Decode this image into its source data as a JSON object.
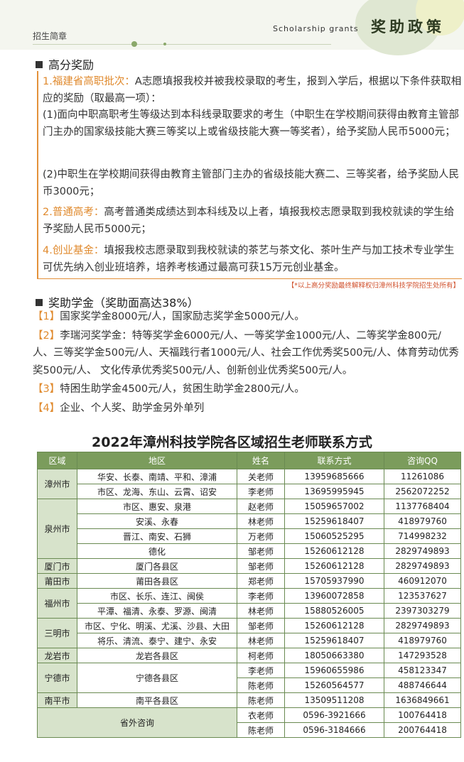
{
  "header": {
    "left": "招生简章",
    "right_en": "Scholarship grants",
    "right_cn": "奖助政策"
  },
  "section1": {
    "title": "高分奖励",
    "item1": {
      "label": "1.福建省高职批次：",
      "text": "A志愿填报我校并被我校录取的考生，报到入学后，根据以下条件获取相应的奖励（取最高一项）：",
      "subs": [
        "(1)面向中职高职考生等级达到本科线录取要求的考生（中职生在学校期间获得由教育主管部门主办的国家级技能大赛三等奖以上或省级技能大赛一等奖者），给予奖励人民币5000元；",
        "(2)中职生在学校期间获得由教育主管部门主办的省级技能大赛二、三等奖者，给予奖励人民币3000元；"
      ]
    },
    "item2": {
      "label": "2.普通高考：",
      "text": "高考普通类成绩达到本科线及以上者，填报我校志愿录取到我校就读的学生给予奖励人民币5000元；"
    },
    "item3": {
      "label": "4.创业基金：",
      "text": "填报我校志愿录取到我校就读的茶艺与茶文化、茶叶生产与加工技术专业学生可优先纳入创业班培养，培养考核通过最高可获15万元创业基金。"
    },
    "note": "【*以上高分奖励最终解释权归漳州科技学院招生处所有】"
  },
  "section2": {
    "title": "奖助学金（奖助面高达38%）",
    "items": [
      {
        "mark": "【1】",
        "text": "国家奖学金8000元/人，国家励志奖学金5000元/人。"
      },
      {
        "mark": "【2】",
        "text": "李瑞河奖学金：特等奖学金6000元/人、一等奖学金1000元/人、二等奖学金800元/人、三等奖学金500元/人、天福践行者1000元/人、社会工作优秀奖500元/人、体育劳动优秀奖500元/人、 文化传承优秀奖500元/人、创新创业优秀奖500元/人。"
      },
      {
        "mark": "【3】",
        "text": "特困生助学金4500元/人，贫困生助学金2800元/人。"
      },
      {
        "mark": "【4】",
        "text": "企业、个人奖、助学金另外单列"
      }
    ]
  },
  "table": {
    "title": "2022年漳州科技学院各区域招生老师联系方式",
    "headers": [
      "区域",
      "地区",
      "姓名",
      "联系方式",
      "咨询QQ"
    ],
    "groups": [
      {
        "region": "漳州市",
        "areas": [
          {
            "area": "华安、长泰、南靖、平和、漳浦",
            "contacts": [
              {
                "name": "关老师",
                "phone": "13959685666",
                "qq": "11261086"
              }
            ]
          },
          {
            "area": "市区、龙海、东山、云霄、诏安",
            "contacts": [
              {
                "name": "李老师",
                "phone": "13695995945",
                "qq": "2562072252"
              }
            ]
          }
        ]
      },
      {
        "region": "泉州市",
        "areas": [
          {
            "area": "市区、惠安、泉港",
            "contacts": [
              {
                "name": "赵老师",
                "phone": "15059657002",
                "qq": "1137768404"
              }
            ]
          },
          {
            "area": "安溪、永春",
            "contacts": [
              {
                "name": "林老师",
                "phone": "15259618407",
                "qq": "418979760"
              }
            ]
          },
          {
            "area": "晋江、南安、石狮",
            "contacts": [
              {
                "name": "万老师",
                "phone": "15060525295",
                "qq": "714998232"
              }
            ]
          },
          {
            "area": "德化",
            "contacts": [
              {
                "name": "邹老师",
                "phone": "15260612128",
                "qq": "2829749893"
              }
            ]
          }
        ]
      },
      {
        "region": "厦门市",
        "areas": [
          {
            "area": "厦门各县区",
            "contacts": [
              {
                "name": "邹老师",
                "phone": "15260612128",
                "qq": "2829749893"
              }
            ]
          }
        ]
      },
      {
        "region": "莆田市",
        "areas": [
          {
            "area": "莆田各县区",
            "contacts": [
              {
                "name": "郑老师",
                "phone": "15705937990",
                "qq": "460912070"
              }
            ]
          }
        ]
      },
      {
        "region": "福州市",
        "areas": [
          {
            "area": "市区、长乐、连江、闽侯",
            "contacts": [
              {
                "name": "李老师",
                "phone": "13960072858",
                "qq": "123537627"
              }
            ]
          },
          {
            "area": "平潭、福清、永泰、罗源、闽清",
            "contacts": [
              {
                "name": "林老师",
                "phone": "15880526005",
                "qq": "2397303279"
              }
            ]
          }
        ]
      },
      {
        "region": "三明市",
        "areas": [
          {
            "area": "市区、宁化、明溪、尤溪、沙县、大田",
            "contacts": [
              {
                "name": "邹老师",
                "phone": "15260612128",
                "qq": "2829749893"
              }
            ]
          },
          {
            "area": "将乐、清流、泰宁、建宁、永安",
            "contacts": [
              {
                "name": "林老师",
                "phone": "15259618407",
                "qq": "418979760"
              }
            ]
          }
        ]
      },
      {
        "region": "龙岩市",
        "areas": [
          {
            "area": "龙岩各县区",
            "contacts": [
              {
                "name": "柯老师",
                "phone": "18050663380",
                "qq": "147293528"
              }
            ]
          }
        ]
      },
      {
        "region": "宁德市",
        "areas": [
          {
            "area": "宁德各县区",
            "contacts": [
              {
                "name": "李老师",
                "phone": "15960655986",
                "qq": "458123347"
              },
              {
                "name": "陈老师",
                "phone": "15260564577",
                "qq": "488746644"
              }
            ]
          }
        ]
      },
      {
        "region": "南平市",
        "areas": [
          {
            "area": "南平各县区",
            "contacts": [
              {
                "name": "陈老师",
                "phone": "13509511208",
                "qq": "1636849661"
              }
            ]
          }
        ]
      }
    ],
    "outside": {
      "label": "省外咨询",
      "contacts": [
        {
          "name": "衣老师",
          "phone": "0596-3921666",
          "qq": "100764418"
        },
        {
          "name": "陈老师",
          "phone": "0596-3184666",
          "qq": "200764418"
        }
      ]
    }
  }
}
